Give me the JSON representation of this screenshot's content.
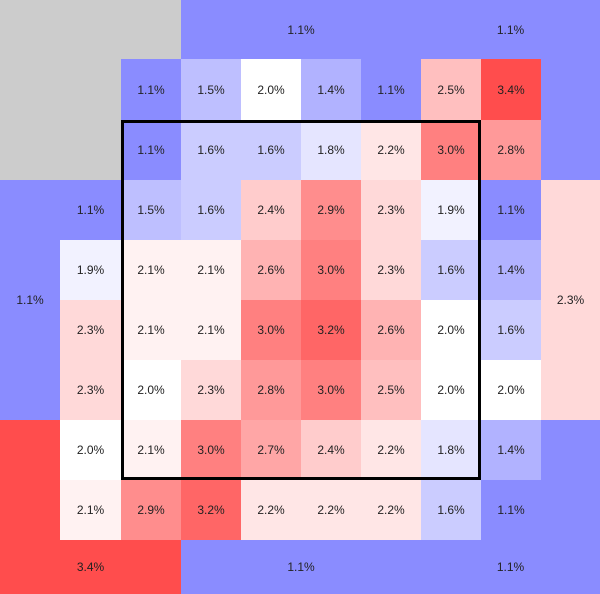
{
  "colors": {
    "low": "#8a8cff",
    "mid": "#ffffff",
    "high": "#ff4d4d",
    "empty": "#cccccc",
    "outline": "#000000"
  },
  "chart_data": {
    "type": "heatmap",
    "value_range": [
      1.1,
      3.4
    ],
    "unit": "%",
    "highlighted_region": {
      "rows": [
        2,
        7
      ],
      "cols": [
        2,
        7
      ]
    },
    "regions": [
      {
        "row": 0,
        "col": 0,
        "row_span": 2,
        "col_span": 3,
        "value": null,
        "label": ""
      },
      {
        "row": 0,
        "col": 3,
        "row_span": 1,
        "col_span": 4,
        "value": 1.1,
        "label": "1.1%"
      },
      {
        "row": 0,
        "col": 7,
        "row_span": 1,
        "col_span": 3,
        "value": 1.1,
        "label": "1.1%"
      },
      {
        "row": 1,
        "col": 2,
        "value": 1.1,
        "label": "1.1%"
      },
      {
        "row": 1,
        "col": 3,
        "value": 1.5,
        "label": "1.5%"
      },
      {
        "row": 1,
        "col": 4,
        "value": 2.0,
        "label": "2.0%"
      },
      {
        "row": 1,
        "col": 5,
        "value": 1.4,
        "label": "1.4%"
      },
      {
        "row": 1,
        "col": 6,
        "value": 1.1,
        "label": "1.1%"
      },
      {
        "row": 1,
        "col": 7,
        "value": 2.5,
        "label": "2.5%"
      },
      {
        "row": 1,
        "col": 8,
        "value": 3.4,
        "label": "3.4%"
      },
      {
        "row": 1,
        "col": 9,
        "row_span": 2,
        "col_span": 1,
        "value": 1.1,
        "label": ""
      },
      {
        "row": 2,
        "col": 0,
        "row_span": 1,
        "col_span": 2,
        "value": null,
        "label": ""
      },
      {
        "row": 2,
        "col": 2,
        "value": 1.1,
        "label": "1.1%"
      },
      {
        "row": 2,
        "col": 3,
        "value": 1.6,
        "label": "1.6%"
      },
      {
        "row": 2,
        "col": 4,
        "value": 1.6,
        "label": "1.6%"
      },
      {
        "row": 2,
        "col": 5,
        "value": 1.8,
        "label": "1.8%"
      },
      {
        "row": 2,
        "col": 6,
        "value": 2.2,
        "label": "2.2%"
      },
      {
        "row": 2,
        "col": 7,
        "value": 3.0,
        "label": "3.0%"
      },
      {
        "row": 2,
        "col": 8,
        "value": 2.8,
        "label": "2.8%"
      },
      {
        "row": 3,
        "col": 0,
        "row_span": 4,
        "col_span": 1,
        "value": 1.1,
        "label": "1.1%"
      },
      {
        "row": 3,
        "col": 1,
        "value": 1.1,
        "label": "1.1%"
      },
      {
        "row": 3,
        "col": 2,
        "value": 1.5,
        "label": "1.5%"
      },
      {
        "row": 3,
        "col": 3,
        "value": 1.6,
        "label": "1.6%"
      },
      {
        "row": 3,
        "col": 4,
        "value": 2.4,
        "label": "2.4%"
      },
      {
        "row": 3,
        "col": 5,
        "value": 2.9,
        "label": "2.9%"
      },
      {
        "row": 3,
        "col": 6,
        "value": 2.3,
        "label": "2.3%"
      },
      {
        "row": 3,
        "col": 7,
        "value": 1.9,
        "label": "1.9%"
      },
      {
        "row": 3,
        "col": 8,
        "value": 1.1,
        "label": "1.1%"
      },
      {
        "row": 3,
        "col": 9,
        "row_span": 4,
        "col_span": 1,
        "value": 2.3,
        "label": "2.3%"
      },
      {
        "row": 4,
        "col": 1,
        "value": 1.9,
        "label": "1.9%"
      },
      {
        "row": 4,
        "col": 2,
        "value": 2.1,
        "label": "2.1%"
      },
      {
        "row": 4,
        "col": 3,
        "value": 2.1,
        "label": "2.1%"
      },
      {
        "row": 4,
        "col": 4,
        "value": 2.6,
        "label": "2.6%"
      },
      {
        "row": 4,
        "col": 5,
        "value": 3.0,
        "label": "3.0%"
      },
      {
        "row": 4,
        "col": 6,
        "value": 2.3,
        "label": "2.3%"
      },
      {
        "row": 4,
        "col": 7,
        "value": 1.6,
        "label": "1.6%"
      },
      {
        "row": 4,
        "col": 8,
        "value": 1.4,
        "label": "1.4%"
      },
      {
        "row": 5,
        "col": 1,
        "value": 2.3,
        "label": "2.3%"
      },
      {
        "row": 5,
        "col": 2,
        "value": 2.1,
        "label": "2.1%"
      },
      {
        "row": 5,
        "col": 3,
        "value": 2.1,
        "label": "2.1%"
      },
      {
        "row": 5,
        "col": 4,
        "value": 3.0,
        "label": "3.0%"
      },
      {
        "row": 5,
        "col": 5,
        "value": 3.2,
        "label": "3.2%"
      },
      {
        "row": 5,
        "col": 6,
        "value": 2.6,
        "label": "2.6%"
      },
      {
        "row": 5,
        "col": 7,
        "value": 2.0,
        "label": "2.0%"
      },
      {
        "row": 5,
        "col": 8,
        "value": 1.6,
        "label": "1.6%"
      },
      {
        "row": 6,
        "col": 1,
        "value": 2.3,
        "label": "2.3%"
      },
      {
        "row": 6,
        "col": 2,
        "value": 2.0,
        "label": "2.0%"
      },
      {
        "row": 6,
        "col": 3,
        "value": 2.3,
        "label": "2.3%"
      },
      {
        "row": 6,
        "col": 4,
        "value": 2.8,
        "label": "2.8%"
      },
      {
        "row": 6,
        "col": 5,
        "value": 3.0,
        "label": "3.0%"
      },
      {
        "row": 6,
        "col": 6,
        "value": 2.5,
        "label": "2.5%"
      },
      {
        "row": 6,
        "col": 7,
        "value": 2.0,
        "label": "2.0%"
      },
      {
        "row": 6,
        "col": 8,
        "value": 2.0,
        "label": "2.0%"
      },
      {
        "row": 7,
        "col": 0,
        "row_span": 2,
        "col_span": 1,
        "value": 3.4,
        "label": ""
      },
      {
        "row": 7,
        "col": 1,
        "value": 2.0,
        "label": "2.0%"
      },
      {
        "row": 7,
        "col": 2,
        "value": 2.1,
        "label": "2.1%"
      },
      {
        "row": 7,
        "col": 3,
        "value": 3.0,
        "label": "3.0%"
      },
      {
        "row": 7,
        "col": 4,
        "value": 2.7,
        "label": "2.7%"
      },
      {
        "row": 7,
        "col": 5,
        "value": 2.4,
        "label": "2.4%"
      },
      {
        "row": 7,
        "col": 6,
        "value": 2.2,
        "label": "2.2%"
      },
      {
        "row": 7,
        "col": 7,
        "value": 1.8,
        "label": "1.8%"
      },
      {
        "row": 7,
        "col": 8,
        "value": 1.4,
        "label": "1.4%"
      },
      {
        "row": 7,
        "col": 9,
        "row_span": 2,
        "col_span": 1,
        "value": 1.1,
        "label": ""
      },
      {
        "row": 8,
        "col": 1,
        "value": 2.1,
        "label": "2.1%"
      },
      {
        "row": 8,
        "col": 2,
        "value": 2.9,
        "label": "2.9%"
      },
      {
        "row": 8,
        "col": 3,
        "value": 3.2,
        "label": "3.2%"
      },
      {
        "row": 8,
        "col": 4,
        "value": 2.2,
        "label": "2.2%"
      },
      {
        "row": 8,
        "col": 5,
        "value": 2.2,
        "label": "2.2%"
      },
      {
        "row": 8,
        "col": 6,
        "value": 2.2,
        "label": "2.2%"
      },
      {
        "row": 8,
        "col": 7,
        "value": 1.6,
        "label": "1.6%"
      },
      {
        "row": 8,
        "col": 8,
        "value": 1.1,
        "label": "1.1%"
      },
      {
        "row": 9,
        "col": 0,
        "row_span": 1,
        "col_span": 3,
        "value": 3.4,
        "label": "3.4%"
      },
      {
        "row": 9,
        "col": 3,
        "row_span": 1,
        "col_span": 4,
        "value": 1.1,
        "label": "1.1%"
      },
      {
        "row": 9,
        "col": 7,
        "row_span": 1,
        "col_span": 3,
        "value": 1.1,
        "label": "1.1%"
      }
    ]
  }
}
